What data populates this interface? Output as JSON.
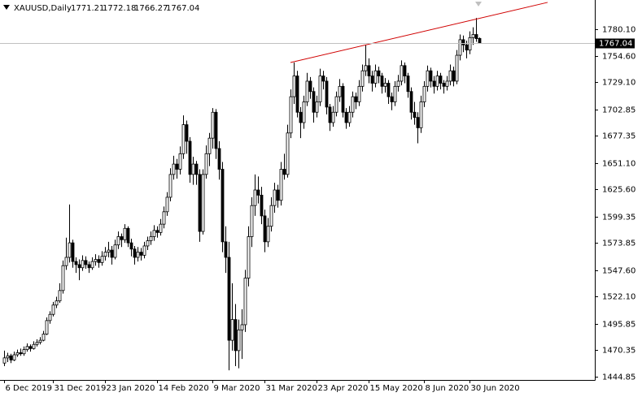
{
  "chart_data": {
    "type": "candlestick",
    "symbol": "XAUUSD,Daily",
    "ylim": [
      1441.72,
      1806.73
    ],
    "yticks": [
      {
        "value": 1780.1,
        "label": "1780.10"
      },
      {
        "value": 1754.6,
        "label": "1754.60"
      },
      {
        "value": 1729.1,
        "label": "1729.10"
      },
      {
        "value": 1702.85,
        "label": "1702.85"
      },
      {
        "value": 1677.35,
        "label": "1677.35"
      },
      {
        "value": 1651.1,
        "label": "1651.10"
      },
      {
        "value": 1625.6,
        "label": "1625.60"
      },
      {
        "value": 1599.35,
        "label": "1599.35"
      },
      {
        "value": 1573.85,
        "label": "1573.85"
      },
      {
        "value": 1547.6,
        "label": "1547.60"
      },
      {
        "value": 1522.1,
        "label": "1522.10"
      },
      {
        "value": 1495.85,
        "label": "1495.85"
      },
      {
        "value": 1470.35,
        "label": "1470.35"
      },
      {
        "value": 1444.85,
        "label": "1444.85"
      }
    ],
    "xlim": [
      -1.25,
      181.5
    ],
    "xticks": [
      {
        "value": 0,
        "label": "6 Dec 2019"
      },
      {
        "value": 15,
        "label": "31 Dec 2019"
      },
      {
        "value": 31,
        "label": "23 Jan 2020"
      },
      {
        "value": 47,
        "label": "14 Feb 2020"
      },
      {
        "value": 64,
        "label": "9 Mar 2020"
      },
      {
        "value": 80,
        "label": "31 Mar 2020"
      },
      {
        "value": 96,
        "label": "23 Apr 2020"
      },
      {
        "value": 112,
        "label": "15 May 2020"
      },
      {
        "value": 129,
        "label": "8 Jun 2020"
      },
      {
        "value": 143,
        "label": "30 Jun 2020"
      }
    ],
    "grid": false,
    "up_color": "#ffffff",
    "down_color": "#000000",
    "line_color": "#000000",
    "trendline": {
      "x": [
        88,
        167
      ],
      "y": [
        1748,
        1806
      ],
      "color": "#d00000"
    },
    "candles": [
      [
        1458,
        1470,
        1455,
        1463
      ],
      [
        1463,
        1468,
        1459,
        1465
      ],
      [
        1465,
        1467,
        1458,
        1461
      ],
      [
        1461,
        1469,
        1460,
        1466
      ],
      [
        1466,
        1471,
        1464,
        1468
      ],
      [
        1468,
        1472,
        1465,
        1467
      ],
      [
        1467,
        1474,
        1465,
        1471
      ],
      [
        1471,
        1477,
        1469,
        1474
      ],
      [
        1474,
        1476,
        1469,
        1472
      ],
      [
        1472,
        1479,
        1471,
        1476
      ],
      [
        1476,
        1481,
        1474,
        1478
      ],
      [
        1478,
        1483,
        1476,
        1480
      ],
      [
        1480,
        1489,
        1479,
        1486
      ],
      [
        1486,
        1502,
        1485,
        1499
      ],
      [
        1499,
        1508,
        1496,
        1505
      ],
      [
        1505,
        1517,
        1503,
        1514
      ],
      [
        1514,
        1522,
        1511,
        1518
      ],
      [
        1518,
        1535,
        1516,
        1528
      ],
      [
        1528,
        1557,
        1525,
        1552
      ],
      [
        1552,
        1579,
        1548,
        1560
      ],
      [
        1560,
        1611,
        1555,
        1574
      ],
      [
        1574,
        1577,
        1550,
        1556
      ],
      [
        1556,
        1560,
        1545,
        1553
      ],
      [
        1553,
        1558,
        1538,
        1550
      ],
      [
        1550,
        1562,
        1547,
        1557
      ],
      [
        1557,
        1561,
        1549,
        1553
      ],
      [
        1553,
        1556,
        1545,
        1550
      ],
      [
        1550,
        1560,
        1548,
        1556
      ],
      [
        1556,
        1563,
        1552,
        1558
      ],
      [
        1558,
        1562,
        1550,
        1555
      ],
      [
        1555,
        1566,
        1552,
        1561
      ],
      [
        1561,
        1570,
        1557,
        1565
      ],
      [
        1565,
        1575,
        1560,
        1567
      ],
      [
        1567,
        1571,
        1553,
        1560
      ],
      [
        1560,
        1577,
        1558,
        1572
      ],
      [
        1572,
        1585,
        1568,
        1580
      ],
      [
        1580,
        1583,
        1570,
        1577
      ],
      [
        1577,
        1592,
        1574,
        1588
      ],
      [
        1588,
        1590,
        1570,
        1574
      ],
      [
        1574,
        1578,
        1561,
        1568
      ],
      [
        1568,
        1571,
        1553,
        1560
      ],
      [
        1560,
        1570,
        1556,
        1565
      ],
      [
        1565,
        1569,
        1557,
        1562
      ],
      [
        1562,
        1575,
        1559,
        1571
      ],
      [
        1571,
        1580,
        1567,
        1576
      ],
      [
        1576,
        1585,
        1572,
        1580
      ],
      [
        1580,
        1591,
        1576,
        1586
      ],
      [
        1586,
        1590,
        1579,
        1584
      ],
      [
        1584,
        1597,
        1581,
        1592
      ],
      [
        1592,
        1609,
        1588,
        1604
      ],
      [
        1604,
        1623,
        1600,
        1618
      ],
      [
        1618,
        1646,
        1614,
        1640
      ],
      [
        1640,
        1658,
        1635,
        1650
      ],
      [
        1650,
        1655,
        1636,
        1645
      ],
      [
        1645,
        1667,
        1640,
        1660
      ],
      [
        1660,
        1697,
        1655,
        1688
      ],
      [
        1688,
        1692,
        1660,
        1672
      ],
      [
        1672,
        1676,
        1632,
        1640
      ],
      [
        1640,
        1657,
        1630,
        1650
      ],
      [
        1650,
        1653,
        1630,
        1640
      ],
      [
        1640,
        1645,
        1575,
        1585
      ],
      [
        1585,
        1645,
        1582,
        1640
      ],
      [
        1640,
        1668,
        1636,
        1660
      ],
      [
        1660,
        1680,
        1648,
        1675
      ],
      [
        1675,
        1704,
        1665,
        1700
      ],
      [
        1700,
        1703,
        1655,
        1665
      ],
      [
        1665,
        1672,
        1635,
        1645
      ],
      [
        1645,
        1652,
        1565,
        1575
      ],
      [
        1575,
        1590,
        1545,
        1560
      ],
      [
        1560,
        1575,
        1451,
        1480
      ],
      [
        1480,
        1535,
        1470,
        1500
      ],
      [
        1500,
        1515,
        1455,
        1470
      ],
      [
        1470,
        1500,
        1453,
        1490
      ],
      [
        1490,
        1510,
        1462,
        1495
      ],
      [
        1495,
        1548,
        1488,
        1540
      ],
      [
        1540,
        1590,
        1532,
        1580
      ],
      [
        1580,
        1618,
        1570,
        1610
      ],
      [
        1610,
        1640,
        1600,
        1625
      ],
      [
        1625,
        1638,
        1612,
        1620
      ],
      [
        1620,
        1628,
        1592,
        1600
      ],
      [
        1600,
        1606,
        1565,
        1575
      ],
      [
        1575,
        1598,
        1570,
        1590
      ],
      [
        1590,
        1618,
        1585,
        1610
      ],
      [
        1610,
        1632,
        1603,
        1625
      ],
      [
        1625,
        1630,
        1608,
        1615
      ],
      [
        1615,
        1652,
        1610,
        1645
      ],
      [
        1645,
        1660,
        1635,
        1640
      ],
      [
        1640,
        1688,
        1637,
        1680
      ],
      [
        1680,
        1722,
        1675,
        1715
      ],
      [
        1715,
        1748,
        1708,
        1735
      ],
      [
        1735,
        1740,
        1695,
        1700
      ],
      [
        1700,
        1705,
        1675,
        1690
      ],
      [
        1690,
        1716,
        1684,
        1710
      ],
      [
        1710,
        1738,
        1706,
        1730
      ],
      [
        1730,
        1734,
        1713,
        1720
      ],
      [
        1720,
        1724,
        1690,
        1700
      ],
      [
        1700,
        1716,
        1695,
        1710
      ],
      [
        1710,
        1742,
        1706,
        1735
      ],
      [
        1735,
        1740,
        1722,
        1730
      ],
      [
        1730,
        1734,
        1698,
        1705
      ],
      [
        1705,
        1708,
        1682,
        1690
      ],
      [
        1690,
        1706,
        1686,
        1700
      ],
      [
        1700,
        1720,
        1696,
        1715
      ],
      [
        1715,
        1732,
        1710,
        1725
      ],
      [
        1725,
        1728,
        1695,
        1700
      ],
      [
        1700,
        1704,
        1684,
        1690
      ],
      [
        1690,
        1706,
        1686,
        1700
      ],
      [
        1700,
        1720,
        1695,
        1715
      ],
      [
        1715,
        1719,
        1703,
        1710
      ],
      [
        1710,
        1731,
        1706,
        1725
      ],
      [
        1725,
        1746,
        1720,
        1740
      ],
      [
        1740,
        1765,
        1735,
        1745
      ],
      [
        1745,
        1752,
        1728,
        1735
      ],
      [
        1735,
        1740,
        1720,
        1728
      ],
      [
        1728,
        1746,
        1724,
        1740
      ],
      [
        1740,
        1744,
        1728,
        1735
      ],
      [
        1735,
        1738,
        1718,
        1725
      ],
      [
        1725,
        1733,
        1719,
        1728
      ],
      [
        1728,
        1731,
        1708,
        1715
      ],
      [
        1715,
        1719,
        1702,
        1710
      ],
      [
        1710,
        1730,
        1706,
        1725
      ],
      [
        1725,
        1736,
        1720,
        1730
      ],
      [
        1730,
        1750,
        1726,
        1745
      ],
      [
        1745,
        1748,
        1728,
        1735
      ],
      [
        1735,
        1738,
        1714,
        1720
      ],
      [
        1720,
        1724,
        1693,
        1700
      ],
      [
        1700,
        1710,
        1688,
        1695
      ],
      [
        1695,
        1700,
        1670,
        1685
      ],
      [
        1685,
        1716,
        1680,
        1710
      ],
      [
        1710,
        1730,
        1705,
        1725
      ],
      [
        1725,
        1745,
        1720,
        1740
      ],
      [
        1740,
        1743,
        1724,
        1730
      ],
      [
        1730,
        1735,
        1718,
        1725
      ],
      [
        1725,
        1740,
        1721,
        1735
      ],
      [
        1735,
        1738,
        1722,
        1728
      ],
      [
        1728,
        1731,
        1718,
        1725
      ],
      [
        1725,
        1735,
        1721,
        1730
      ],
      [
        1730,
        1746,
        1726,
        1740
      ],
      [
        1740,
        1744,
        1725,
        1730
      ],
      [
        1730,
        1760,
        1727,
        1755
      ],
      [
        1755,
        1775,
        1750,
        1770
      ],
      [
        1770,
        1774,
        1758,
        1765
      ],
      [
        1765,
        1769,
        1752,
        1760
      ],
      [
        1760,
        1778,
        1756,
        1772
      ],
      [
        1772,
        1782,
        1765,
        1775
      ],
      [
        1775,
        1791,
        1768,
        1771
      ],
      [
        1771.21,
        1772.18,
        1766.27,
        1767.04
      ]
    ]
  }
}
